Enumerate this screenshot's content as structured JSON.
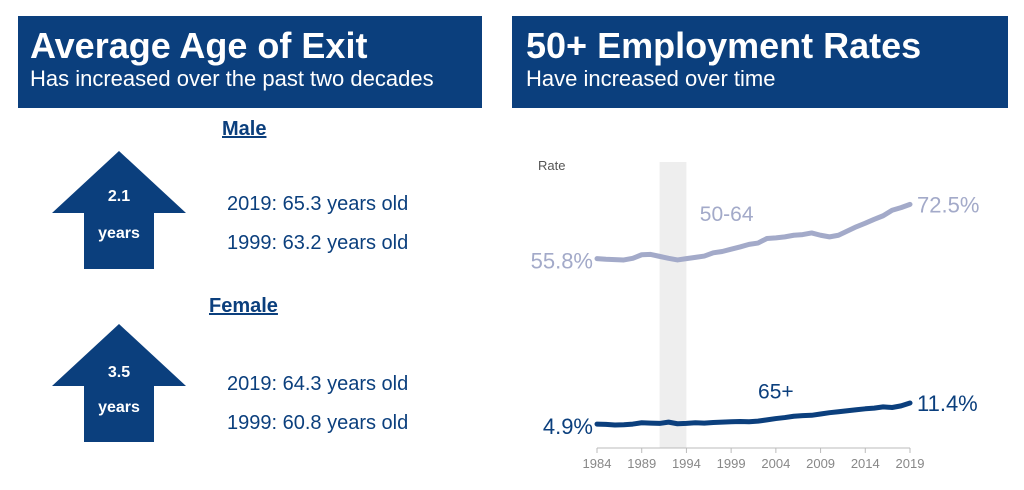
{
  "left_panel": {
    "title": "Average Age of Exit",
    "subtitle": "Has increased over the past two decades",
    "male": {
      "heading": "Male",
      "increase_value": "2.1",
      "increase_unit": "years",
      "line_2019": "2019: 65.3 years old",
      "line_1999": "1999: 63.2 years old"
    },
    "female": {
      "heading": "Female",
      "increase_value": "3.5",
      "increase_unit": "years",
      "line_2019": "2019: 64.3 years old",
      "line_1999": "1999: 60.8 years old"
    }
  },
  "right_panel": {
    "title": "50+ Employment Rates",
    "subtitle": "Have increased over time"
  },
  "colors": {
    "navy": "#0b3f7d",
    "series_50_64": "#a3aac9",
    "series_65": "#0b3f7d",
    "shade": "#eeeeee"
  },
  "chart_data": {
    "type": "line",
    "ylabel": "Rate",
    "x_ticks": [
      1984,
      1989,
      1994,
      1999,
      2004,
      2009,
      2014,
      2019
    ],
    "xlim": [
      1984,
      2019
    ],
    "ylim": [
      0,
      80
    ],
    "shaded_range": [
      1991,
      1994
    ],
    "series": [
      {
        "name": "50-64",
        "start_label": "55.8%",
        "end_label": "72.5%",
        "x": [
          1984,
          1985,
          1986,
          1987,
          1988,
          1989,
          1990,
          1991,
          1992,
          1993,
          1994,
          1995,
          1996,
          1997,
          1998,
          1999,
          2000,
          2001,
          2002,
          2003,
          2004,
          2005,
          2006,
          2007,
          2008,
          2009,
          2010,
          2011,
          2012,
          2013,
          2014,
          2015,
          2016,
          2017,
          2018,
          2019
        ],
        "values": [
          55.8,
          55.6,
          55.5,
          55.4,
          55.9,
          57.0,
          57.1,
          56.5,
          55.9,
          55.4,
          55.8,
          56.2,
          56.6,
          57.6,
          58.0,
          58.7,
          59.4,
          60.2,
          60.6,
          62.0,
          62.2,
          62.5,
          63.0,
          63.2,
          63.7,
          63.0,
          62.5,
          63.0,
          64.3,
          65.6,
          66.7,
          67.9,
          69.0,
          70.7,
          71.5,
          72.5
        ]
      },
      {
        "name": "65+",
        "start_label": "4.9%",
        "end_label": "11.4%",
        "x": [
          1984,
          1985,
          1986,
          1987,
          1988,
          1989,
          1990,
          1991,
          1992,
          1993,
          1994,
          1995,
          1996,
          1997,
          1998,
          1999,
          2000,
          2001,
          2002,
          2003,
          2004,
          2005,
          2006,
          2007,
          2008,
          2009,
          2010,
          2011,
          2012,
          2013,
          2014,
          2015,
          2016,
          2017,
          2018,
          2019
        ],
        "values": [
          4.9,
          4.8,
          4.6,
          4.7,
          4.9,
          5.3,
          5.2,
          5.1,
          5.5,
          5.0,
          5.1,
          5.3,
          5.2,
          5.4,
          5.5,
          5.6,
          5.7,
          5.6,
          5.8,
          6.2,
          6.6,
          6.9,
          7.3,
          7.5,
          7.6,
          8.0,
          8.4,
          8.7,
          9.0,
          9.3,
          9.6,
          9.8,
          10.2,
          10.0,
          10.5,
          11.4
        ]
      }
    ]
  }
}
